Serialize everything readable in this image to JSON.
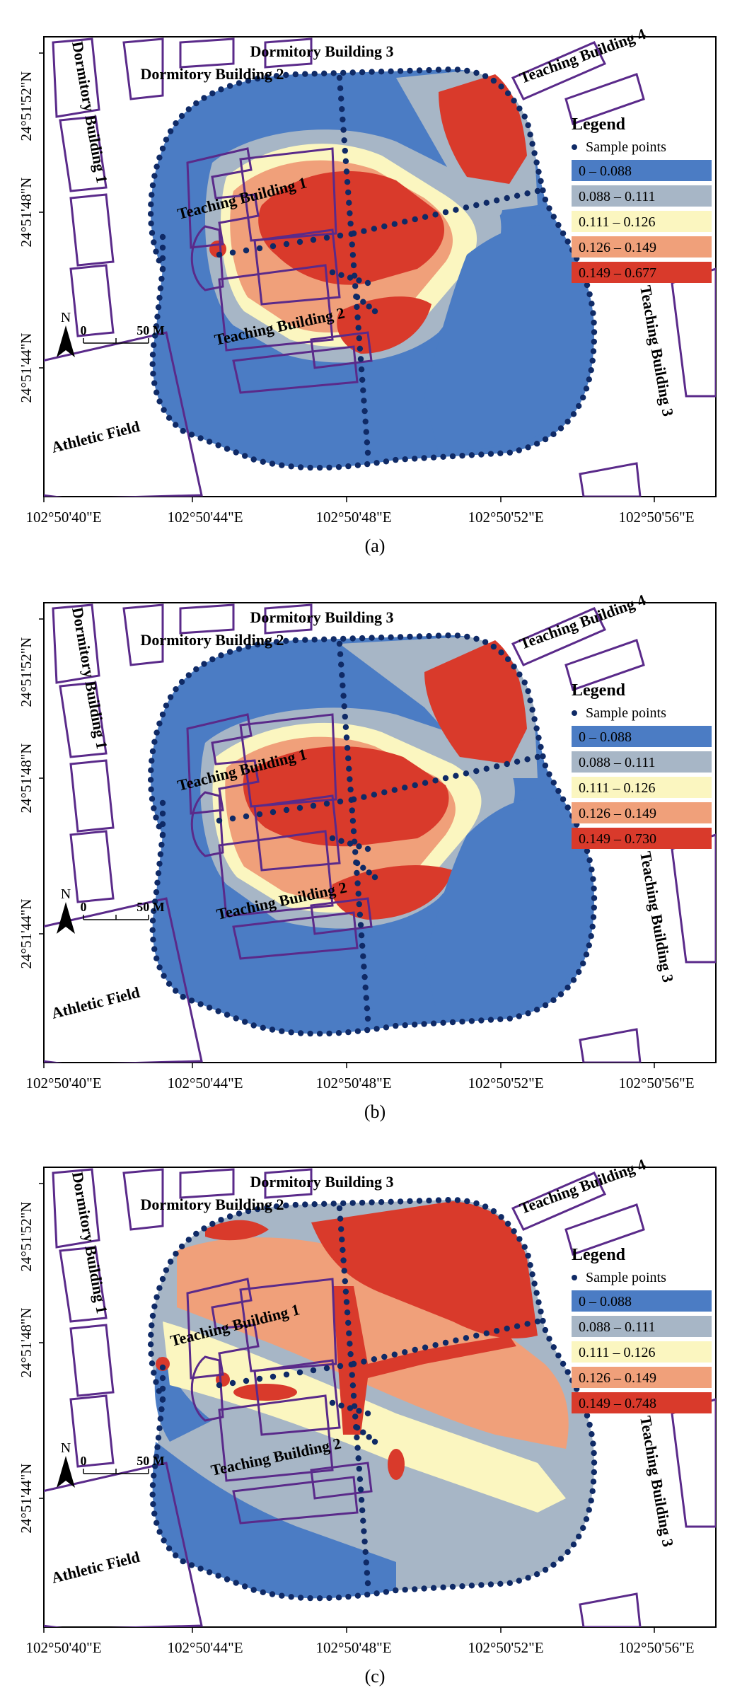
{
  "colors": {
    "class1": "#4b7cc4",
    "class2": "#a7b6c6",
    "class3": "#fbf6c0",
    "class4": "#f0a07a",
    "class5": "#d93a2b",
    "building_stroke": "#5a2a8a",
    "sample_point": "#0f2a66"
  },
  "labels": {
    "dorm1": "Dormitory Building 1",
    "dorm2": "Dormitory Building 2",
    "dorm3": "Dormitory Building 3",
    "teach1": "Teaching Building 1",
    "teach2": "Teaching Building 2",
    "teach3": "Teaching Building 3",
    "teach4": "Teaching Building 4",
    "athletic": "Athletic Field"
  },
  "axes": {
    "lon_ticks": [
      "102°50'40\"E",
      "102°50'44\"E",
      "102°50'48\"E",
      "102°50'52\"E",
      "102°50'56\"E"
    ],
    "lat_ticks": [
      "24°51'52\"N",
      "24°51'48\"N",
      "24°51'44\"N"
    ]
  },
  "scale": {
    "north": "N",
    "zero": "0",
    "distance": "50 M"
  },
  "legend": {
    "title": "Legend",
    "sample_label": "Sample points"
  },
  "panels": [
    {
      "label": "(a)",
      "classes": [
        "0 – 0.088",
        "0.088 – 0.111",
        "0.111 – 0.126",
        "0.126 – 0.149",
        "0.149 – 0.677"
      ]
    },
    {
      "label": "(b)",
      "classes": [
        "0 – 0.088",
        "0.088 – 0.111",
        "0.111 – 0.126",
        "0.126 – 0.149",
        "0.149 – 0.730"
      ]
    },
    {
      "label": "(c)",
      "classes": [
        "0 – 0.088",
        "0.088 – 0.111",
        "0.111 – 0.126",
        "0.126 – 0.149",
        "0.149 – 0.748"
      ]
    }
  ]
}
